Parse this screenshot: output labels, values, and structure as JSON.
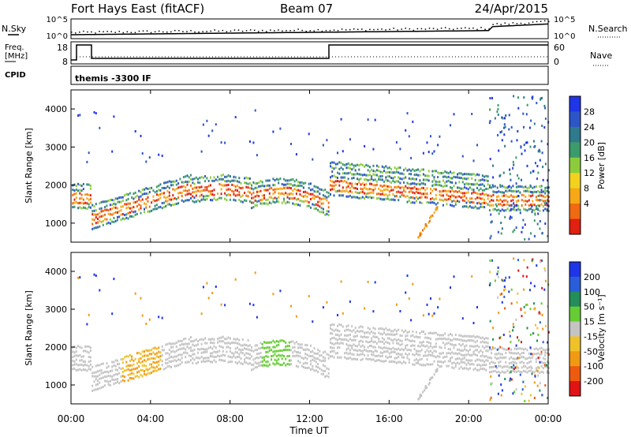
{
  "header": {
    "station": "Fort Hays East (fitACF)",
    "beam": "Beam 07",
    "date": "24/Apr/2015"
  },
  "top_panels": {
    "nsky_label": "N.Sky",
    "nsky_ticks": [
      "10^5",
      "10^0"
    ],
    "nsearch_label": "N.Search",
    "nsearch_ticks": [
      "10^5",
      "10^0"
    ],
    "freq_label_1": "Freq.",
    "freq_label_2": "[MHz]",
    "freq_ticks": [
      "18",
      "8"
    ],
    "nave_label": "Nave",
    "nave_ticks": [
      "60",
      "0"
    ],
    "cpid_label": "CPID",
    "cpid_text": "themis -3300 IF"
  },
  "colors": {
    "power": [
      "#1f35e8",
      "#2e55c8",
      "#2f7a8c",
      "#3c9b6a",
      "#8ccc3c",
      "#f2d21e",
      "#f6a816",
      "#ef6a10",
      "#e02010"
    ],
    "velocity": [
      "#1f35e8",
      "#2a5ed8",
      "#238e5a",
      "#66cc33",
      "#c4c4c4",
      "#f0c22a",
      "#f09a14",
      "#ee5a10",
      "#e01414"
    ]
  },
  "chart_data": [
    {
      "type": "heatmap",
      "name": "power",
      "ylabel": "Slant Range [km]",
      "yticks": [
        "4000",
        "3000",
        "2000",
        "1000"
      ],
      "ylim": [
        500,
        4500
      ],
      "xlim": [
        0,
        24
      ],
      "colorbar_label": "Power [dB]",
      "colorbar_ticks": [
        "28",
        "24",
        "20",
        "16",
        "12",
        "8",
        "4"
      ],
      "colorbar_range": [
        0,
        32
      ]
    },
    {
      "type": "heatmap",
      "name": "velocity",
      "ylabel": "Slant Range [km]",
      "yticks": [
        "4000",
        "3000",
        "2000",
        "1000"
      ],
      "ylim": [
        500,
        4500
      ],
      "xlim": [
        0,
        24
      ],
      "colorbar_label": "Velocity [m s⁻¹]",
      "colorbar_ticks": [
        "200",
        "100",
        "50",
        "15",
        "-15",
        "-50",
        "-100",
        "-200"
      ]
    }
  ],
  "xaxis": {
    "ticks": [
      "00:00",
      "04:00",
      "08:00",
      "12:00",
      "16:00",
      "20:00",
      "00:00"
    ],
    "label": "Time UT"
  }
}
